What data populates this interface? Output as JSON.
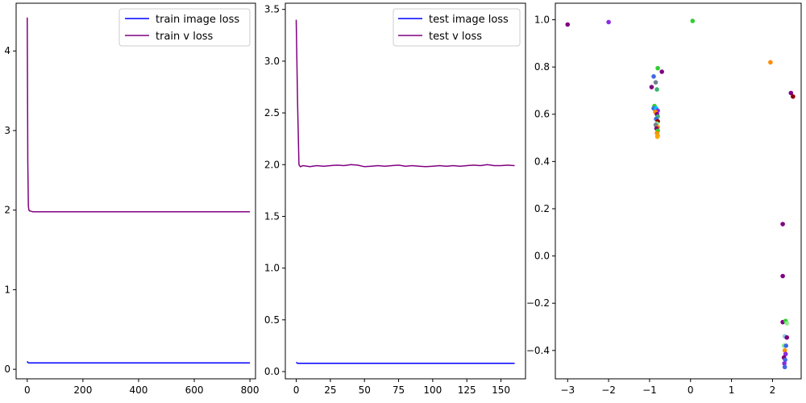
{
  "colors": {
    "train_image": "#0000ff",
    "train_v": "#800080",
    "test_image": "#0000ff",
    "test_v": "#800080"
  },
  "chart_data": [
    {
      "type": "line",
      "xlim": [
        -40,
        820
      ],
      "ylim": [
        -0.12,
        4.6
      ],
      "xticks": [
        0,
        200,
        400,
        600,
        800
      ],
      "yticks": [
        0,
        1,
        2,
        3,
        4
      ],
      "legend_position": "top-right",
      "series": [
        {
          "name": "train image loss",
          "color": "#0000ff",
          "x": [
            0,
            2,
            5,
            10,
            20,
            50,
            100,
            200,
            300,
            400,
            500,
            600,
            700,
            800
          ],
          "y": [
            0.1,
            0.085,
            0.082,
            0.08,
            0.08,
            0.08,
            0.08,
            0.08,
            0.08,
            0.08,
            0.08,
            0.08,
            0.08,
            0.08
          ]
        },
        {
          "name": "train v loss",
          "color": "#800080",
          "x": [
            0,
            2,
            4,
            6,
            8,
            10,
            15,
            20,
            30,
            50,
            100,
            200,
            300,
            400,
            500,
            600,
            700,
            800
          ],
          "y": [
            4.42,
            2.6,
            2.05,
            2.0,
            1.99,
            1.99,
            1.985,
            1.98,
            1.98,
            1.98,
            1.98,
            1.98,
            1.98,
            1.98,
            1.98,
            1.98,
            1.98,
            1.98
          ]
        }
      ]
    },
    {
      "type": "line",
      "xlim": [
        -8,
        168
      ],
      "ylim": [
        -0.07,
        3.56
      ],
      "xticks": [
        0,
        25,
        50,
        75,
        100,
        125,
        150
      ],
      "yticks": [
        0.0,
        0.5,
        1.0,
        1.5,
        2.0,
        2.5,
        3.0,
        3.5
      ],
      "ytick_labels": [
        "0.0",
        "0.5",
        "1.0",
        "1.5",
        "2.0",
        "2.5",
        "3.0",
        "3.5"
      ],
      "legend_position": "top-right",
      "series": [
        {
          "name": "test image loss",
          "color": "#0000ff",
          "x": [
            0,
            1,
            2,
            5,
            10,
            20,
            40,
            60,
            80,
            100,
            120,
            140,
            160
          ],
          "y": [
            0.09,
            0.08,
            0.08,
            0.08,
            0.08,
            0.08,
            0.08,
            0.08,
            0.08,
            0.08,
            0.08,
            0.08,
            0.08
          ]
        },
        {
          "name": "test v loss",
          "color": "#800080",
          "x": [
            0,
            1,
            2,
            3,
            5,
            10,
            15,
            20,
            25,
            30,
            35,
            40,
            45,
            50,
            55,
            60,
            65,
            70,
            75,
            80,
            85,
            90,
            95,
            100,
            105,
            110,
            115,
            120,
            125,
            130,
            135,
            140,
            145,
            150,
            155,
            160
          ],
          "y": [
            3.4,
            2.6,
            2.0,
            1.98,
            1.99,
            1.98,
            1.99,
            1.985,
            1.99,
            1.995,
            1.99,
            2.0,
            1.995,
            1.98,
            1.985,
            1.99,
            1.985,
            1.99,
            1.995,
            1.985,
            1.99,
            1.985,
            1.98,
            1.985,
            1.99,
            1.985,
            1.99,
            1.985,
            1.99,
            1.995,
            1.99,
            2.0,
            1.99,
            1.99,
            1.995,
            1.99
          ]
        }
      ]
    },
    {
      "type": "scatter",
      "xlim": [
        -3.3,
        2.7
      ],
      "ylim": [
        -0.52,
        1.07
      ],
      "xticks": [
        -3,
        -2,
        -1,
        0,
        1,
        2
      ],
      "yticks": [
        -0.4,
        -0.2,
        0.0,
        0.2,
        0.4,
        0.6,
        0.8,
        1.0
      ],
      "ytick_labels": [
        "−0.4",
        "−0.2",
        "0.0",
        "0.2",
        "0.4",
        "0.6",
        "0.8",
        "1.0"
      ],
      "xtick_labels": [
        "−3",
        "−2",
        "−1",
        "0",
        "1",
        "2"
      ],
      "points": [
        {
          "x": -3.0,
          "y": 0.98,
          "color": "#800080"
        },
        {
          "x": -2.0,
          "y": 0.99,
          "color": "#8a2be2"
        },
        {
          "x": 0.05,
          "y": 0.995,
          "color": "#32cd32"
        },
        {
          "x": 1.95,
          "y": 0.82,
          "color": "#ff8c00"
        },
        {
          "x": 2.45,
          "y": 0.69,
          "color": "#800080"
        },
        {
          "x": 2.5,
          "y": 0.675,
          "color": "#8b0000"
        },
        {
          "x": -0.8,
          "y": 0.795,
          "color": "#32cd32"
        },
        {
          "x": -0.7,
          "y": 0.78,
          "color": "#800080"
        },
        {
          "x": -0.9,
          "y": 0.76,
          "color": "#4169e1"
        },
        {
          "x": -0.85,
          "y": 0.735,
          "color": "#708090"
        },
        {
          "x": -0.95,
          "y": 0.715,
          "color": "#800080"
        },
        {
          "x": -0.82,
          "y": 0.705,
          "color": "#3cb371"
        },
        {
          "x": -0.88,
          "y": 0.635,
          "color": "#32cd32"
        },
        {
          "x": -0.9,
          "y": 0.625,
          "color": "#4169e1"
        },
        {
          "x": -0.84,
          "y": 0.625,
          "color": "#00bfff"
        },
        {
          "x": -0.8,
          "y": 0.615,
          "color": "#8a2be2"
        },
        {
          "x": -0.86,
          "y": 0.61,
          "color": "#ff8c00"
        },
        {
          "x": -0.82,
          "y": 0.6,
          "color": "#800080"
        },
        {
          "x": -0.8,
          "y": 0.59,
          "color": "#3cb371"
        },
        {
          "x": -0.84,
          "y": 0.58,
          "color": "#4169e1"
        },
        {
          "x": -0.8,
          "y": 0.57,
          "color": "#8b0000"
        },
        {
          "x": -0.82,
          "y": 0.56,
          "color": "#90ee90"
        },
        {
          "x": -0.85,
          "y": 0.555,
          "color": "#708090"
        },
        {
          "x": -0.8,
          "y": 0.545,
          "color": "#ff8c00"
        },
        {
          "x": -0.83,
          "y": 0.54,
          "color": "#800080"
        },
        {
          "x": -0.8,
          "y": 0.53,
          "color": "#32cd32"
        },
        {
          "x": -0.82,
          "y": 0.52,
          "color": "#ff8c00"
        },
        {
          "x": -0.8,
          "y": 0.51,
          "color": "#daa520"
        },
        {
          "x": -0.81,
          "y": 0.505,
          "color": "#ffa500"
        },
        {
          "x": 2.25,
          "y": 0.135,
          "color": "#800080"
        },
        {
          "x": 2.25,
          "y": -0.085,
          "color": "#800080"
        },
        {
          "x": 2.25,
          "y": -0.28,
          "color": "#800080"
        },
        {
          "x": 2.32,
          "y": -0.275,
          "color": "#32cd32"
        },
        {
          "x": 2.35,
          "y": -0.285,
          "color": "#90ee90"
        },
        {
          "x": 2.3,
          "y": -0.34,
          "color": "#87ceeb"
        },
        {
          "x": 2.35,
          "y": -0.345,
          "color": "#800080"
        },
        {
          "x": 2.28,
          "y": -0.38,
          "color": "#90ee90"
        },
        {
          "x": 2.33,
          "y": -0.38,
          "color": "#4169e1"
        },
        {
          "x": 2.3,
          "y": -0.4,
          "color": "#ff8c00"
        },
        {
          "x": 2.32,
          "y": -0.415,
          "color": "#8a2be2"
        },
        {
          "x": 2.28,
          "y": -0.43,
          "color": "#800080"
        },
        {
          "x": 2.31,
          "y": -0.44,
          "color": "#4169e1"
        },
        {
          "x": 2.29,
          "y": -0.455,
          "color": "#8a2be2"
        },
        {
          "x": 2.3,
          "y": -0.47,
          "color": "#4169e1"
        }
      ]
    }
  ]
}
